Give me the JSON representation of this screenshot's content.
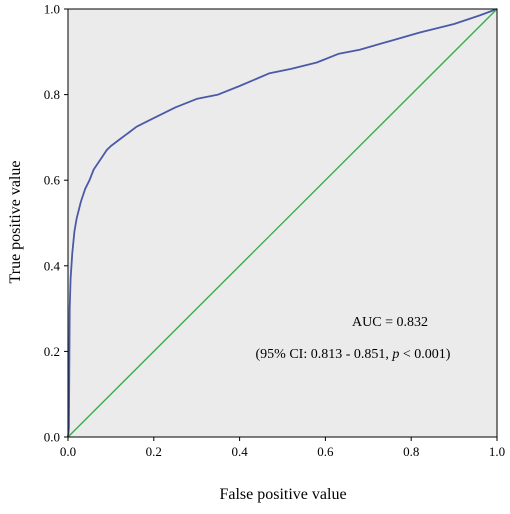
{
  "chart_data": {
    "type": "line",
    "title": "",
    "xlabel": "False positive value",
    "ylabel": "True positive value",
    "xlim": [
      0.0,
      1.0
    ],
    "ylim": [
      0.0,
      1.0
    ],
    "x_ticks": [
      "0.0",
      "0.2",
      "0.4",
      "0.6",
      "0.8",
      "1.0"
    ],
    "y_ticks": [
      "0.0",
      "0.2",
      "0.4",
      "0.6",
      "0.8",
      "1.0"
    ],
    "grid": false,
    "legend": "none",
    "background_color": "#ebebeb",
    "annotations": {
      "auc": "AUC = 0.832",
      "ci_prefix": "(95% CI: 0.813 - 0.851, ",
      "ci_p": "p",
      "ci_suffix": " < 0.001)"
    },
    "series": [
      {
        "color": "#4a5aa8",
        "points": [
          [
            0.0,
            0.0
          ],
          [
            0.002,
            0.02
          ],
          [
            0.004,
            0.3
          ],
          [
            0.006,
            0.37
          ],
          [
            0.01,
            0.43
          ],
          [
            0.015,
            0.48
          ],
          [
            0.02,
            0.51
          ],
          [
            0.03,
            0.55
          ],
          [
            0.04,
            0.58
          ],
          [
            0.05,
            0.6
          ],
          [
            0.06,
            0.625
          ],
          [
            0.07,
            0.64
          ],
          [
            0.08,
            0.655
          ],
          [
            0.09,
            0.67
          ],
          [
            0.1,
            0.68
          ],
          [
            0.12,
            0.695
          ],
          [
            0.14,
            0.71
          ],
          [
            0.16,
            0.725
          ],
          [
            0.2,
            0.745
          ],
          [
            0.25,
            0.77
          ],
          [
            0.3,
            0.79
          ],
          [
            0.35,
            0.8
          ],
          [
            0.4,
            0.82
          ],
          [
            0.47,
            0.85
          ],
          [
            0.52,
            0.86
          ],
          [
            0.58,
            0.875
          ],
          [
            0.63,
            0.895
          ],
          [
            0.68,
            0.905
          ],
          [
            0.75,
            0.925
          ],
          [
            0.82,
            0.945
          ],
          [
            0.9,
            0.965
          ],
          [
            0.96,
            0.985
          ],
          [
            1.0,
            1.0
          ]
        ]
      },
      {
        "color": "#33b04a",
        "points": [
          [
            0.0,
            0.0
          ],
          [
            1.0,
            1.0
          ]
        ]
      }
    ]
  }
}
